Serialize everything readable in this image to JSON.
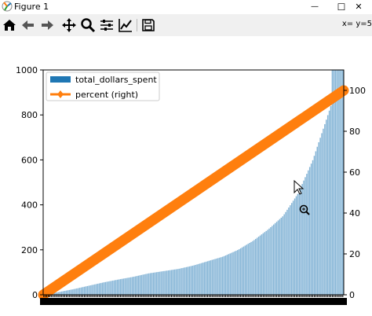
{
  "window": {
    "title": "Figure 1",
    "minimize_glyph": "—",
    "maximize_glyph": "☐",
    "close_glyph": "✕"
  },
  "toolbar": {
    "buttons": [
      "home-icon",
      "back-icon",
      "forward-icon",
      "pan-icon",
      "zoom-icon",
      "configure-subplots-icon",
      "edit-axis-icon",
      "save-icon"
    ],
    "coords_text": "x= y=5"
  },
  "colors": {
    "bar": "#1f77b4",
    "line": "#ff7f0e",
    "toolbar_bg": "#f0f0f0"
  },
  "chart_data": {
    "type": "bar",
    "title": "",
    "xlabel": "",
    "ylabel": "",
    "ylim": [
      0,
      1000
    ],
    "y_ticks": [
      "0",
      "200",
      "400",
      "600",
      "800",
      "1000"
    ],
    "y2lim": [
      0,
      110
    ],
    "y2_ticks": [
      "0",
      "20",
      "40",
      "60",
      "80",
      "100"
    ],
    "legend_location": "upper left",
    "series": [
      {
        "name": "total_dollars_spent",
        "kind": "bar",
        "axis": "left",
        "count": 200,
        "values_sampled": [
          0,
          12,
          25,
          40,
          55,
          68,
          80,
          95,
          105,
          115,
          130,
          150,
          170,
          200,
          240,
          290,
          350,
          450,
          600,
          1000
        ],
        "values_sampled_at_fraction": [
          0.0,
          0.05,
          0.1,
          0.15,
          0.2,
          0.25,
          0.3,
          0.35,
          0.4,
          0.45,
          0.5,
          0.55,
          0.6,
          0.65,
          0.7,
          0.75,
          0.8,
          0.85,
          0.9,
          1.0
        ]
      },
      {
        "name": "percent (right)",
        "kind": "line",
        "axis": "right",
        "marker": "diamond",
        "x_fraction": [
          0,
          1
        ],
        "values": [
          0,
          100
        ]
      }
    ]
  }
}
